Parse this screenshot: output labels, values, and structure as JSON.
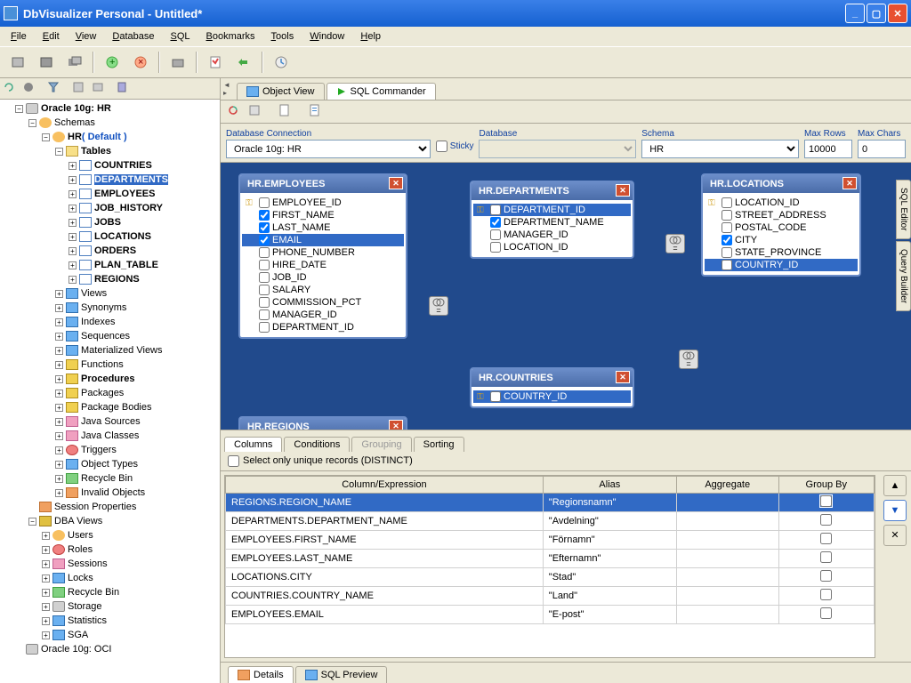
{
  "window": {
    "title": "DbVisualizer Personal - Untitled*"
  },
  "menu": [
    "File",
    "Edit",
    "View",
    "Database",
    "SQL",
    "Bookmarks",
    "Tools",
    "Window",
    "Help"
  ],
  "mainTabs": {
    "objectView": "Object View",
    "sqlCommander": "SQL Commander"
  },
  "connection": {
    "labels": {
      "db": "Database Connection",
      "sticky": "Sticky",
      "database": "Database",
      "schema": "Schema",
      "maxRows": "Max Rows",
      "maxChars": "Max Chars"
    },
    "values": {
      "db": "Oracle 10g: HR",
      "schema": "HR",
      "maxRows": "10000",
      "maxChars": "0"
    }
  },
  "tree": {
    "root": "Oracle 10g: HR",
    "schemas": "Schemas",
    "hr": "HR",
    "hrDefault": "( Default )",
    "tables": "Tables",
    "tableList": [
      "COUNTRIES",
      "DEPARTMENTS",
      "EMPLOYEES",
      "JOB_HISTORY",
      "JOBS",
      "LOCATIONS",
      "ORDERS",
      "PLAN_TABLE",
      "REGIONS"
    ],
    "selectedTable": "DEPARTMENTS",
    "nodes": [
      "Views",
      "Synonyms",
      "Indexes",
      "Sequences",
      "Materialized Views",
      "Functions",
      "Procedures",
      "Packages",
      "Package Bodies",
      "Java Sources",
      "Java Classes",
      "Triggers",
      "Object Types",
      "Recycle Bin",
      "Invalid Objects"
    ],
    "sessionProps": "Session Properties",
    "dbaViews": "DBA Views",
    "dbaList": [
      "Users",
      "Roles",
      "Sessions",
      "Locks",
      "Recycle Bin",
      "Storage",
      "Statistics",
      "SGA"
    ],
    "oci": "Oracle 10g: OCI"
  },
  "diagram": {
    "employees": {
      "title": "HR.EMPLOYEES",
      "cols": [
        {
          "n": "EMPLOYEE_ID",
          "k": true,
          "c": false
        },
        {
          "n": "FIRST_NAME",
          "k": false,
          "c": true
        },
        {
          "n": "LAST_NAME",
          "k": false,
          "c": true
        },
        {
          "n": "EMAIL",
          "k": false,
          "c": true,
          "sel": true
        },
        {
          "n": "PHONE_NUMBER",
          "k": false,
          "c": false
        },
        {
          "n": "HIRE_DATE",
          "k": false,
          "c": false
        },
        {
          "n": "JOB_ID",
          "k": false,
          "c": false
        },
        {
          "n": "SALARY",
          "k": false,
          "c": false
        },
        {
          "n": "COMMISSION_PCT",
          "k": false,
          "c": false
        },
        {
          "n": "MANAGER_ID",
          "k": false,
          "c": false
        },
        {
          "n": "DEPARTMENT_ID",
          "k": false,
          "c": false
        }
      ]
    },
    "departments": {
      "title": "HR.DEPARTMENTS",
      "cols": [
        {
          "n": "DEPARTMENT_ID",
          "k": true,
          "c": false,
          "sel": true
        },
        {
          "n": "DEPARTMENT_NAME",
          "k": false,
          "c": true
        },
        {
          "n": "MANAGER_ID",
          "k": false,
          "c": false
        },
        {
          "n": "LOCATION_ID",
          "k": false,
          "c": false
        }
      ]
    },
    "locations": {
      "title": "HR.LOCATIONS",
      "cols": [
        {
          "n": "LOCATION_ID",
          "k": false,
          "c": false
        },
        {
          "n": "STREET_ADDRESS",
          "k": false,
          "c": false
        },
        {
          "n": "POSTAL_CODE",
          "k": false,
          "c": false
        },
        {
          "n": "CITY",
          "k": false,
          "c": true
        },
        {
          "n": "STATE_PROVINCE",
          "k": false,
          "c": false
        },
        {
          "n": "COUNTRY_ID",
          "k": false,
          "c": false,
          "sel": true
        }
      ],
      "locKey": true
    },
    "countries": {
      "title": "HR.COUNTRIES",
      "cols": [
        {
          "n": "COUNTRY_ID",
          "k": true,
          "c": false,
          "sel": true
        }
      ]
    },
    "regions": {
      "title": "HR.REGIONS"
    }
  },
  "lowerTabs": [
    "Columns",
    "Conditions",
    "Grouping",
    "Sorting"
  ],
  "distinct": "Select only unique records (DISTINCT)",
  "grid": {
    "headers": [
      "Column/Expression",
      "Alias",
      "Aggregate",
      "Group By"
    ],
    "rows": [
      {
        "col": "REGIONS.REGION_NAME",
        "alias": "\"Regionsnamn\"",
        "sel": true
      },
      {
        "col": "DEPARTMENTS.DEPARTMENT_NAME",
        "alias": "\"Avdelning\""
      },
      {
        "col": "EMPLOYEES.FIRST_NAME",
        "alias": "\"Förnamn\""
      },
      {
        "col": "EMPLOYEES.LAST_NAME",
        "alias": "\"Efternamn\""
      },
      {
        "col": "LOCATIONS.CITY",
        "alias": "\"Stad\""
      },
      {
        "col": "COUNTRIES.COUNTRY_NAME",
        "alias": "\"Land\""
      },
      {
        "col": "EMPLOYEES.EMAIL",
        "alias": "\"E-post\""
      }
    ]
  },
  "bottomTabs": [
    "Details",
    "SQL Preview"
  ],
  "sideTabs": [
    "SQL Editor",
    "Query Builder"
  ],
  "colors": {
    "accent": "#316ac5",
    "diagram_bg": "#214a8c",
    "table_border": "#6a8cc8"
  }
}
